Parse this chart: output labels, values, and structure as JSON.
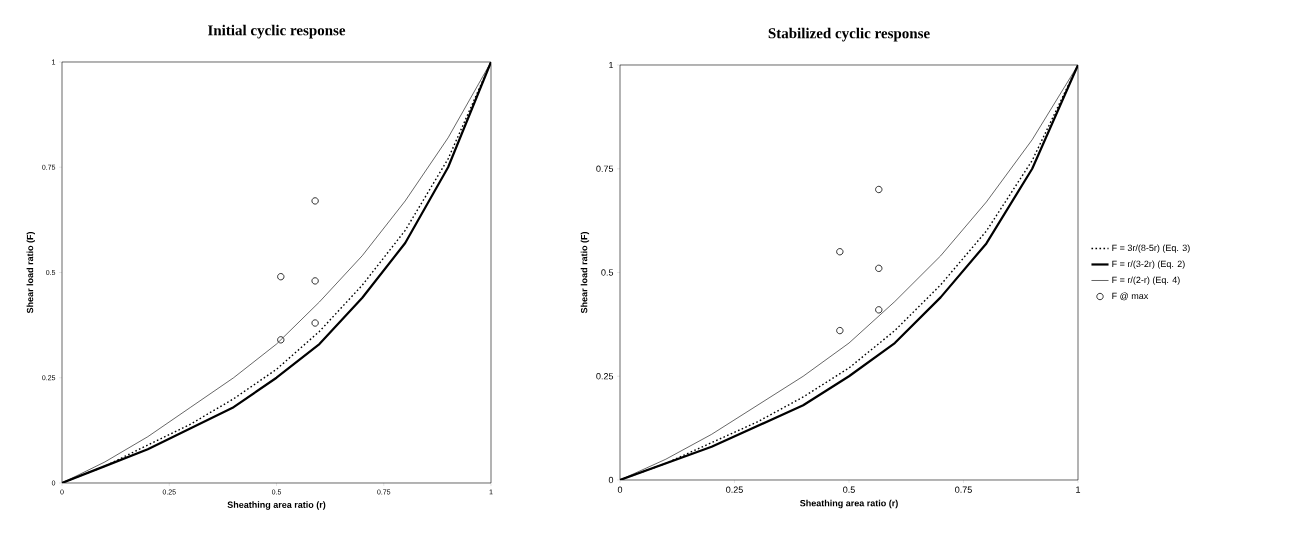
{
  "chart_data": [
    {
      "type": "line",
      "title": "Initial cyclic response",
      "xlabel": "Sheathing area ratio (r)",
      "ylabel": "Shear load ratio (F)",
      "xlim": [
        0,
        1
      ],
      "ylim": [
        0,
        1
      ],
      "xticks": [
        0,
        0.25,
        0.5,
        0.75,
        1
      ],
      "yticks": [
        0,
        0.25,
        0.5,
        0.75,
        1
      ],
      "grid": false,
      "legend": false,
      "series": [
        {
          "color": "#000000",
          "line_style": "dotted",
          "x": [
            0,
            0.1,
            0.2,
            0.3,
            0.4,
            0.5,
            0.6,
            0.7,
            0.8,
            0.9,
            1
          ],
          "values": [
            0,
            0.04,
            0.09,
            0.14,
            0.2,
            0.27,
            0.36,
            0.47,
            0.6,
            0.77,
            1
          ]
        },
        {
          "color": "#000000",
          "line_style": "solid",
          "x": [
            0,
            0.1,
            0.2,
            0.3,
            0.4,
            0.5,
            0.6,
            0.7,
            0.8,
            0.9,
            1
          ],
          "values": [
            0,
            0.04,
            0.08,
            0.13,
            0.18,
            0.25,
            0.33,
            0.44,
            0.57,
            0.75,
            1
          ]
        },
        {
          "color": "#000000",
          "line_style": "solid",
          "x": [
            0,
            0.1,
            0.2,
            0.3,
            0.4,
            0.5,
            0.6,
            0.7,
            0.8,
            0.9,
            1
          ],
          "values": [
            0,
            0.05,
            0.11,
            0.18,
            0.25,
            0.33,
            0.43,
            0.54,
            0.67,
            0.82,
            1
          ]
        },
        {
          "type": "scatter",
          "color": "#000000",
          "marker": "circle",
          "x": [
            0.51,
            0.51,
            0.59,
            0.59,
            0.59
          ],
          "values": [
            0.49,
            0.34,
            0.67,
            0.48,
            0.38
          ]
        }
      ]
    },
    {
      "type": "line",
      "title": "Stabilized cyclic response",
      "xlabel": "Sheathing area ratio (r)",
      "ylabel": "Shear load ratio (F)",
      "xlim": [
        0,
        1
      ],
      "ylim": [
        0,
        1
      ],
      "xticks": [
        0,
        0.25,
        0.5,
        0.75,
        1
      ],
      "yticks": [
        0,
        0.25,
        0.5,
        0.75,
        1
      ],
      "grid": false,
      "legend": "right",
      "series": [
        {
          "name": "F = 3r/(8-5r)   (Eq. 3)",
          "color": "#000000",
          "line_style": "dotted",
          "x": [
            0,
            0.1,
            0.2,
            0.3,
            0.4,
            0.5,
            0.6,
            0.7,
            0.8,
            0.9,
            1
          ],
          "values": [
            0,
            0.04,
            0.09,
            0.14,
            0.2,
            0.27,
            0.36,
            0.47,
            0.6,
            0.77,
            1
          ]
        },
        {
          "name": "F = r/(3-2r)   (Eq. 2)",
          "color": "#000000",
          "line_style": "solid",
          "x": [
            0,
            0.1,
            0.2,
            0.3,
            0.4,
            0.5,
            0.6,
            0.7,
            0.8,
            0.9,
            1
          ],
          "values": [
            0,
            0.04,
            0.08,
            0.13,
            0.18,
            0.25,
            0.33,
            0.44,
            0.57,
            0.75,
            1
          ]
        },
        {
          "name": "F = r/(2-r)   (Eq. 4)",
          "color": "#000000",
          "line_style": "solid",
          "x": [
            0,
            0.1,
            0.2,
            0.3,
            0.4,
            0.5,
            0.6,
            0.7,
            0.8,
            0.9,
            1
          ],
          "values": [
            0,
            0.05,
            0.11,
            0.18,
            0.25,
            0.33,
            0.43,
            0.54,
            0.67,
            0.82,
            1
          ]
        },
        {
          "type": "scatter",
          "name": "F @ max",
          "color": "#000000",
          "marker": "circle",
          "x": [
            0.48,
            0.48,
            0.565,
            0.565,
            0.565
          ],
          "values": [
            0.55,
            0.36,
            0.7,
            0.51,
            0.41
          ]
        }
      ]
    }
  ]
}
